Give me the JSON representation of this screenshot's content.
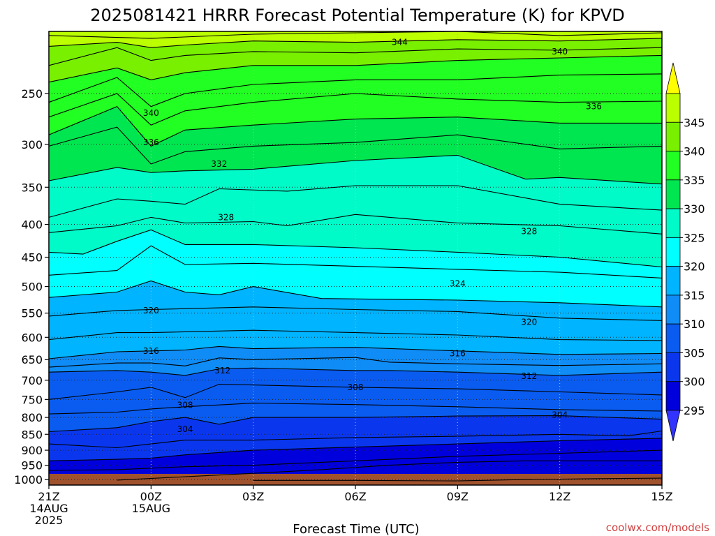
{
  "chart_data": {
    "type": "heatmap",
    "title": "2025081421 HRRR Forecast Potential Temperature (K) for KPVD",
    "xlabel": "Forecast Time (UTC)",
    "credit": "coolwx.com/models",
    "x_ticks": [
      {
        "hour": 0,
        "lines": [
          "21Z",
          "14AUG",
          "2025"
        ]
      },
      {
        "hour": 3,
        "lines": [
          "00Z",
          "15AUG"
        ]
      },
      {
        "hour": 6,
        "lines": [
          "03Z"
        ]
      },
      {
        "hour": 9,
        "lines": [
          "06Z"
        ]
      },
      {
        "hour": 12,
        "lines": [
          "09Z"
        ]
      },
      {
        "hour": 15,
        "lines": [
          "12Z"
        ]
      },
      {
        "hour": 18,
        "lines": [
          "15Z"
        ]
      }
    ],
    "x_range_hours": [
      0,
      18
    ],
    "y_axis": "pressure (hPa), log scale, inverted",
    "y_range": [
      1020,
      200
    ],
    "y_ticks": [
      250,
      300,
      350,
      400,
      450,
      500,
      550,
      600,
      650,
      700,
      750,
      800,
      850,
      900,
      950,
      1000
    ],
    "grid": true,
    "colorbar": {
      "levels": [
        295,
        300,
        305,
        310,
        315,
        320,
        325,
        330,
        335,
        340,
        345
      ],
      "tick_labels": [
        "295",
        "300",
        "305",
        "310",
        "315",
        "320",
        "325",
        "330",
        "335",
        "340",
        "345"
      ],
      "colors": [
        "#3333ff",
        "#0000dd",
        "#0a37ee",
        "#0a5cf0",
        "#0f8cf5",
        "#00b4ff",
        "#00ffff",
        "#00fac8",
        "#00e650",
        "#22ff22",
        "#78f000",
        "#bbff00",
        "#ffff00"
      ],
      "extend": "both"
    },
    "contour_interval_K": 2,
    "contour_labels": [
      {
        "value": "344",
        "hour": 10.3,
        "p": 208
      },
      {
        "value": "340",
        "hour": 15.0,
        "p": 215
      },
      {
        "value": "340",
        "hour": 3.0,
        "p": 268
      },
      {
        "value": "336",
        "hour": 16.0,
        "p": 262
      },
      {
        "value": "336",
        "hour": 3.0,
        "p": 298
      },
      {
        "value": "332",
        "hour": 5.0,
        "p": 322
      },
      {
        "value": "328",
        "hour": 5.2,
        "p": 390
      },
      {
        "value": "328",
        "hour": 14.1,
        "p": 410
      },
      {
        "value": "324",
        "hour": 12.0,
        "p": 495
      },
      {
        "value": "320",
        "hour": 3.0,
        "p": 545
      },
      {
        "value": "320",
        "hour": 14.1,
        "p": 568
      },
      {
        "value": "316",
        "hour": 3.0,
        "p": 630
      },
      {
        "value": "316",
        "hour": 12.0,
        "p": 636
      },
      {
        "value": "312",
        "hour": 5.1,
        "p": 676
      },
      {
        "value": "312",
        "hour": 14.1,
        "p": 690
      },
      {
        "value": "308",
        "hour": 9.0,
        "p": 718
      },
      {
        "value": "308",
        "hour": 4.0,
        "p": 766
      },
      {
        "value": "304",
        "hour": 15.0,
        "p": 793
      },
      {
        "value": "304",
        "hour": 4.0,
        "p": 835
      }
    ],
    "contour_lines": [
      {
        "value": 346,
        "pts": [
          [
            0,
            203
          ],
          [
            3,
            205
          ],
          [
            6,
            202
          ],
          [
            9,
            201
          ],
          [
            12,
            200
          ],
          [
            15,
            203
          ],
          [
            18,
            201
          ]
        ]
      },
      {
        "value": 344,
        "pts": [
          [
            0,
            211
          ],
          [
            2,
            208
          ],
          [
            3,
            212
          ],
          [
            4,
            210
          ],
          [
            6,
            207
          ],
          [
            9,
            208
          ],
          [
            12,
            206
          ],
          [
            15,
            207
          ],
          [
            18,
            205
          ]
        ]
      },
      {
        "value": 342,
        "pts": [
          [
            0,
            226
          ],
          [
            2,
            212
          ],
          [
            3,
            222
          ],
          [
            4,
            218
          ],
          [
            6,
            215
          ],
          [
            9,
            216
          ],
          [
            12,
            213
          ],
          [
            15,
            214
          ],
          [
            18,
            212
          ]
        ]
      },
      {
        "value": 340,
        "pts": [
          [
            0,
            240
          ],
          [
            2,
            228
          ],
          [
            3,
            238
          ],
          [
            4,
            232
          ],
          [
            6,
            226
          ],
          [
            9,
            226
          ],
          [
            12,
            222
          ],
          [
            15,
            220
          ],
          [
            18,
            218
          ]
        ]
      },
      {
        "value": 338,
        "pts": [
          [
            0,
            258
          ],
          [
            2,
            236
          ],
          [
            3,
            262
          ],
          [
            4,
            250
          ],
          [
            6,
            242
          ],
          [
            9,
            238
          ],
          [
            12,
            238
          ],
          [
            15,
            234
          ],
          [
            18,
            233
          ]
        ]
      },
      {
        "value": 336,
        "pts": [
          [
            0,
            272
          ],
          [
            2,
            250
          ],
          [
            3,
            280
          ],
          [
            4,
            266
          ],
          [
            6,
            258
          ],
          [
            9,
            250
          ],
          [
            12,
            255
          ],
          [
            15,
            258
          ],
          [
            18,
            257
          ]
        ]
      },
      {
        "value": 334,
        "pts": [
          [
            0,
            290
          ],
          [
            2,
            262
          ],
          [
            3,
            302
          ],
          [
            4,
            285
          ],
          [
            6,
            280
          ],
          [
            9,
            274
          ],
          [
            12,
            272
          ],
          [
            15,
            278
          ],
          [
            18,
            278
          ]
        ]
      },
      {
        "value": 332,
        "pts": [
          [
            0,
            302
          ],
          [
            2,
            282
          ],
          [
            3,
            322
          ],
          [
            4,
            308
          ],
          [
            6,
            302
          ],
          [
            9,
            298
          ],
          [
            12,
            290
          ],
          [
            15,
            305
          ],
          [
            18,
            302
          ]
        ]
      },
      {
        "value": 330,
        "pts": [
          [
            0,
            342
          ],
          [
            2,
            326
          ],
          [
            3,
            332
          ],
          [
            4,
            330
          ],
          [
            6,
            328
          ],
          [
            9,
            318
          ],
          [
            12,
            312
          ],
          [
            14,
            340
          ],
          [
            15,
            338
          ],
          [
            18,
            346
          ]
        ]
      },
      {
        "value": 328,
        "pts": [
          [
            0,
            390
          ],
          [
            2,
            365
          ],
          [
            3,
            368
          ],
          [
            4,
            372
          ],
          [
            5,
            352
          ],
          [
            7,
            355
          ],
          [
            9,
            348
          ],
          [
            12,
            348
          ],
          [
            15,
            372
          ],
          [
            18,
            380
          ]
        ]
      },
      {
        "value": 326,
        "pts": [
          [
            0,
            412
          ],
          [
            2,
            402
          ],
          [
            3,
            390
          ],
          [
            4,
            398
          ],
          [
            6,
            396
          ],
          [
            7,
            402
          ],
          [
            9,
            386
          ],
          [
            12,
            398
          ],
          [
            15,
            402
          ],
          [
            18,
            414
          ]
        ]
      },
      {
        "value": 324,
        "pts": [
          [
            0,
            442
          ],
          [
            1,
            445
          ],
          [
            2,
            425
          ],
          [
            3,
            408
          ],
          [
            4,
            430
          ],
          [
            6,
            430
          ],
          [
            9,
            435
          ],
          [
            12,
            442
          ],
          [
            15,
            450
          ],
          [
            18,
            466
          ]
        ]
      },
      {
        "value": 322,
        "pts": [
          [
            0,
            480
          ],
          [
            2,
            472
          ],
          [
            3,
            432
          ],
          [
            4,
            462
          ],
          [
            6,
            460
          ],
          [
            9,
            465
          ],
          [
            12,
            470
          ],
          [
            15,
            475
          ],
          [
            18,
            485
          ]
        ]
      },
      {
        "value": 320,
        "pts": [
          [
            0,
            520
          ],
          [
            2,
            510
          ],
          [
            3,
            490
          ],
          [
            4,
            510
          ],
          [
            5,
            515
          ],
          [
            6,
            500
          ],
          [
            8,
            522
          ],
          [
            12,
            525
          ],
          [
            15,
            530
          ],
          [
            18,
            538
          ]
        ]
      },
      {
        "value": 318,
        "pts": [
          [
            0,
            556
          ],
          [
            2,
            545
          ],
          [
            3,
            543
          ],
          [
            6,
            538
          ],
          [
            9,
            543
          ],
          [
            12,
            547
          ],
          [
            15,
            560
          ],
          [
            18,
            565
          ]
        ]
      },
      {
        "value": 316,
        "pts": [
          [
            0,
            605
          ],
          [
            2,
            590
          ],
          [
            3,
            590
          ],
          [
            6,
            585
          ],
          [
            9,
            590
          ],
          [
            12,
            595
          ],
          [
            15,
            605
          ],
          [
            18,
            607
          ]
        ]
      },
      {
        "value": 314,
        "pts": [
          [
            0,
            648
          ],
          [
            2,
            632
          ],
          [
            3,
            630
          ],
          [
            4,
            628
          ],
          [
            5,
            620
          ],
          [
            6,
            625
          ],
          [
            9,
            622
          ],
          [
            12,
            630
          ],
          [
            15,
            638
          ],
          [
            18,
            636
          ]
        ]
      },
      {
        "value": 312,
        "pts": [
          [
            0,
            668
          ],
          [
            2,
            658
          ],
          [
            3,
            658
          ],
          [
            4,
            665
          ],
          [
            5,
            646
          ],
          [
            6,
            650
          ],
          [
            9,
            645
          ],
          [
            10,
            656
          ],
          [
            12,
            660
          ],
          [
            15,
            664
          ],
          [
            18,
            660
          ]
        ]
      },
      {
        "value": 310,
        "pts": [
          [
            0,
            680
          ],
          [
            2,
            676
          ],
          [
            3,
            680
          ],
          [
            4,
            688
          ],
          [
            5,
            672
          ],
          [
            6,
            670
          ],
          [
            9,
            676
          ],
          [
            10,
            676
          ],
          [
            12,
            680
          ],
          [
            15,
            688
          ],
          [
            18,
            680
          ]
        ]
      },
      {
        "value": 308,
        "pts": [
          [
            0,
            750
          ],
          [
            2,
            730
          ],
          [
            3,
            718
          ],
          [
            4,
            745
          ],
          [
            5,
            710
          ],
          [
            6,
            712
          ],
          [
            9,
            718
          ],
          [
            12,
            722
          ],
          [
            15,
            730
          ],
          [
            18,
            738
          ]
        ]
      },
      {
        "value": 306,
        "pts": [
          [
            0,
            790
          ],
          [
            2,
            785
          ],
          [
            3,
            776
          ],
          [
            4,
            770
          ],
          [
            6,
            760
          ],
          [
            9,
            764
          ],
          [
            12,
            770
          ],
          [
            15,
            778
          ],
          [
            18,
            782
          ]
        ]
      },
      {
        "value": 304,
        "pts": [
          [
            0,
            842
          ],
          [
            2,
            830
          ],
          [
            3,
            812
          ],
          [
            4,
            800
          ],
          [
            5,
            820
          ],
          [
            6,
            800
          ],
          [
            9,
            800
          ],
          [
            12,
            796
          ],
          [
            15,
            795
          ],
          [
            18,
            805
          ]
        ]
      },
      {
        "value": 302,
        "pts": [
          [
            0,
            880
          ],
          [
            2,
            892
          ],
          [
            3,
            880
          ],
          [
            4,
            868
          ],
          [
            6,
            868
          ],
          [
            9,
            860
          ],
          [
            12,
            856
          ],
          [
            15,
            850
          ],
          [
            17,
            855
          ],
          [
            18,
            840
          ]
        ]
      },
      {
        "value": 300,
        "pts": [
          [
            0,
            935
          ],
          [
            2,
            930
          ],
          [
            3,
            926
          ],
          [
            4,
            915
          ],
          [
            6,
            900
          ],
          [
            9,
            890
          ],
          [
            12,
            880
          ],
          [
            15,
            870
          ],
          [
            18,
            862
          ]
        ]
      },
      {
        "value": 298,
        "pts": [
          [
            0,
            968
          ],
          [
            2,
            965
          ],
          [
            3,
            960
          ],
          [
            4,
            955
          ],
          [
            6,
            950
          ],
          [
            9,
            935
          ],
          [
            12,
            920
          ],
          [
            15,
            910
          ],
          [
            18,
            900
          ]
        ]
      },
      {
        "value": 296,
        "pts": [
          [
            2,
            1002
          ],
          [
            4,
            990
          ],
          [
            6,
            978
          ],
          [
            8,
            965
          ],
          [
            10,
            950
          ],
          [
            12,
            940
          ],
          [
            14,
            935
          ],
          [
            18,
            935
          ]
        ]
      },
      {
        "value": 294,
        "pts": [
          [
            6,
            1003
          ],
          [
            9,
            1003
          ],
          [
            12,
            1005
          ],
          [
            14,
            1000
          ],
          [
            16,
            997
          ],
          [
            18,
            995
          ]
        ]
      }
    ]
  }
}
